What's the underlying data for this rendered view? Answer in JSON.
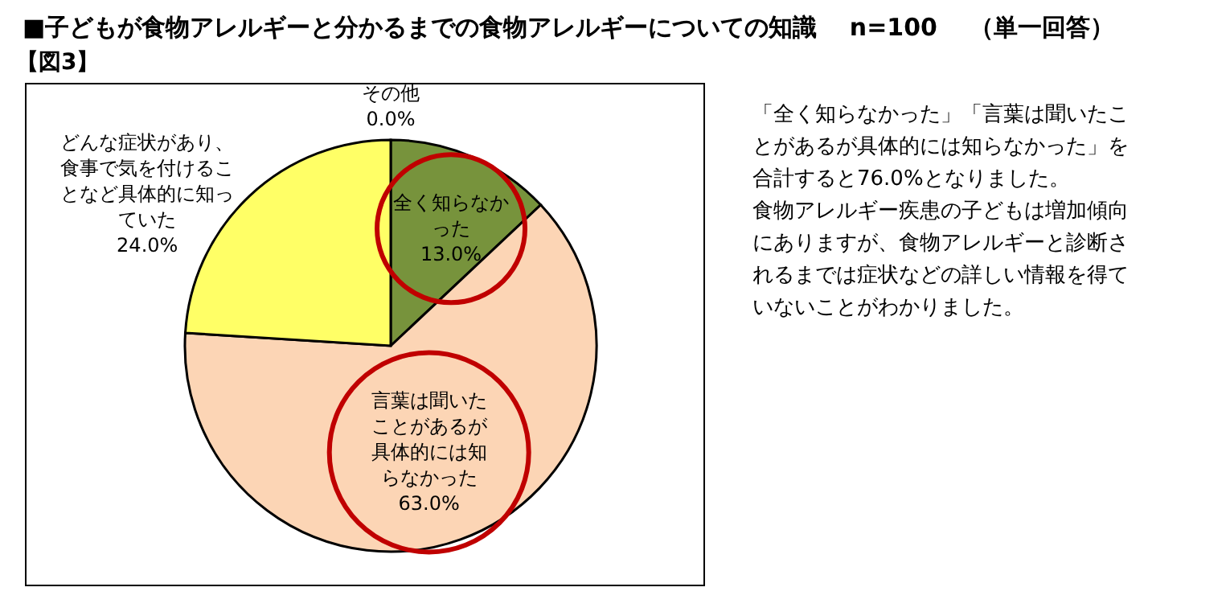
{
  "chart_data": {
    "type": "pie",
    "title": "■子どもが食物アレルギーと分かるまでの食物アレルギーについての知識　 n=100 　（単一回答）",
    "subtitle": "【図3】",
    "categories": [
      "全く知らなかった",
      "言葉は聞いたことがあるが具体的には知らなかった",
      "どんな症状があり、食事で気を付けることなど具体的に知っていた",
      "その他"
    ],
    "values": [
      13.0,
      63.0,
      24.0,
      0.0
    ],
    "colors": [
      "#77933c",
      "#fcd5b5",
      "#ffff66",
      "#4f81bd"
    ],
    "value_labels": [
      "13.0%",
      "63.0%",
      "24.0%",
      "0.0%"
    ],
    "annotations": [
      "「全く知らなかった」「言葉は聞いたことがあるが具体的には知らなかった」を合計すると76.0%となりました。",
      "食物アレルギー疾患の子どもは増加傾向にありますが、食物アレルギーと診断されるまでは症状などの詳しい情報を得ていないことがわかりました。"
    ]
  }
}
